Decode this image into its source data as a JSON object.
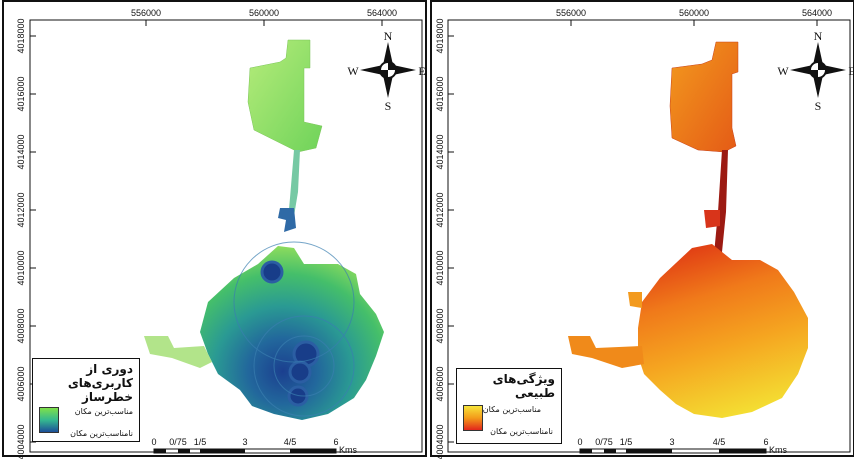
{
  "panels": [
    {
      "legend_title_line1": "دوری از",
      "legend_title_line2": "کاربری‌های خطرساز",
      "legend_high": "مناسب‌ترین مکان",
      "legend_low": "نامناسب‌ترین مکان",
      "ramp_colors": [
        "#7ee04a",
        "#35b98f",
        "#1c4f98"
      ]
    },
    {
      "legend_title_line1": "ویژگی‌های طبیعی",
      "legend_high": "مناسب‌ترین مکان",
      "legend_low": "نامناسب‌ترین مکان",
      "ramp_colors": [
        "#f7e43a",
        "#f39b1a",
        "#e2261c"
      ]
    }
  ],
  "x_ticks": [
    "556000",
    "560000",
    "564000"
  ],
  "y_ticks": [
    "4018000",
    "4016000",
    "4014000",
    "4012000",
    "4010000",
    "4008000",
    "4006000",
    "4004000"
  ],
  "scale_bar": {
    "labels": [
      "0",
      "0/75",
      "1/5",
      "3",
      "4/5",
      "6"
    ],
    "unit": "Kms"
  },
  "north_arrow": {
    "n": "N",
    "s": "S",
    "e": "E",
    "w": "W"
  }
}
